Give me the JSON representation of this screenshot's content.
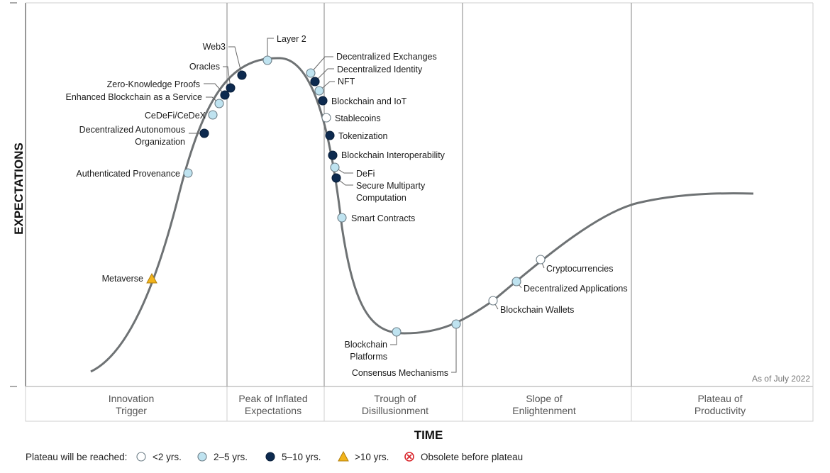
{
  "chart_data": {
    "type": "scatter",
    "title": "",
    "xlabel": "TIME",
    "ylabel": "EXPECTATIONS",
    "as_of": "As of July 2022",
    "phases": [
      {
        "name": "Innovation Trigger",
        "lines": [
          "Innovation",
          "Trigger"
        ]
      },
      {
        "name": "Peak of Inflated Expectations",
        "lines": [
          "Peak of Inflated",
          "Expectations"
        ]
      },
      {
        "name": "Trough of Disillusionment",
        "lines": [
          "Trough of",
          "Disillusionment"
        ]
      },
      {
        "name": "Slope of Enlightenment",
        "lines": [
          "Slope of",
          "Enlightenment"
        ]
      },
      {
        "name": "Plateau of Productivity",
        "lines": [
          "Plateau of",
          "Productivity"
        ]
      }
    ],
    "legend": {
      "title": "Plateau will be reached:",
      "items": [
        {
          "key": "lt2",
          "label": "<2 yrs.",
          "color": "#ffffff"
        },
        {
          "key": "2to5",
          "label": "2–5 yrs.",
          "color": "#bfe3f0"
        },
        {
          "key": "5to10",
          "label": "5–10 yrs.",
          "color": "#0d2a4f"
        },
        {
          "key": "gt10",
          "label": ">10 yrs.",
          "color": "#f2b41c"
        },
        {
          "key": "obsolete",
          "label": "Obsolete before plateau",
          "color": "#d9262c"
        }
      ]
    },
    "technologies": [
      {
        "name": "Metaverse",
        "lines": [
          "Metaverse"
        ],
        "cat": "gt10"
      },
      {
        "name": "Authenticated Provenance",
        "lines": [
          "Authenticated Provenance"
        ],
        "cat": "2to5"
      },
      {
        "name": "Decentralized Autonomous Organization",
        "lines": [
          "Decentralized Autonomous",
          "Organization"
        ],
        "cat": "5to10"
      },
      {
        "name": "CeDeFi/CeDeX",
        "lines": [
          "CeDeFi/CeDeX"
        ],
        "cat": "2to5"
      },
      {
        "name": "Enhanced Blockchain as a Service",
        "lines": [
          "Enhanced Blockchain as a Service"
        ],
        "cat": "2to5"
      },
      {
        "name": "Zero-Knowledge Proofs",
        "lines": [
          "Zero-Knowledge Proofs"
        ],
        "cat": "5to10"
      },
      {
        "name": "Oracles",
        "lines": [
          "Oracles"
        ],
        "cat": "5to10"
      },
      {
        "name": "Web3",
        "lines": [
          "Web3"
        ],
        "cat": "5to10"
      },
      {
        "name": "Layer 2",
        "lines": [
          "Layer 2"
        ],
        "cat": "2to5"
      },
      {
        "name": "Decentralized Exchanges",
        "lines": [
          "Decentralized Exchanges"
        ],
        "cat": "2to5"
      },
      {
        "name": "Decentralized Identity",
        "lines": [
          "Decentralized Identity"
        ],
        "cat": "5to10"
      },
      {
        "name": "NFT",
        "lines": [
          "NFT"
        ],
        "cat": "2to5"
      },
      {
        "name": "Blockchain and IoT",
        "lines": [
          "Blockchain and IoT"
        ],
        "cat": "5to10"
      },
      {
        "name": "Stablecoins",
        "lines": [
          "Stablecoins"
        ],
        "cat": "lt2"
      },
      {
        "name": "Tokenization",
        "lines": [
          "Tokenization"
        ],
        "cat": "5to10"
      },
      {
        "name": "Blockchain Interoperability",
        "lines": [
          "Blockchain Interoperability"
        ],
        "cat": "5to10"
      },
      {
        "name": "DeFi",
        "lines": [
          "DeFi"
        ],
        "cat": "2to5"
      },
      {
        "name": "Secure Multiparty Computation",
        "lines": [
          "Secure Multiparty",
          "Computation"
        ],
        "cat": "5to10"
      },
      {
        "name": "Smart Contracts",
        "lines": [
          "Smart Contracts"
        ],
        "cat": "2to5"
      },
      {
        "name": "Blockchain Platforms",
        "lines": [
          "Blockchain",
          "Platforms"
        ],
        "cat": "2to5"
      },
      {
        "name": "Consensus Mechanisms",
        "lines": [
          "Consensus Mechanisms"
        ],
        "cat": "2to5"
      },
      {
        "name": "Blockchain Wallets",
        "lines": [
          "Blockchain Wallets"
        ],
        "cat": "lt2"
      },
      {
        "name": "Decentralized Applications",
        "lines": [
          "Decentralized Applications"
        ],
        "cat": "2to5"
      },
      {
        "name": "Cryptocurrencies",
        "lines": [
          "Cryptocurrencies"
        ],
        "cat": "lt2"
      }
    ]
  }
}
